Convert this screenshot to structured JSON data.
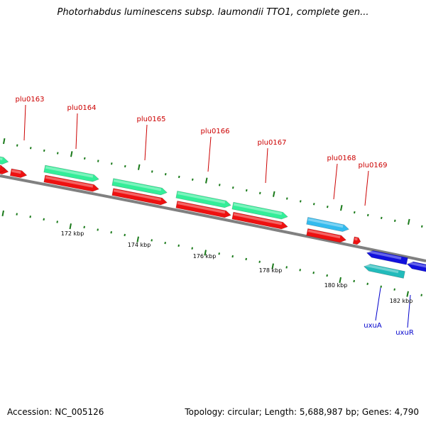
{
  "title": "Photorhabdus luminescens subsp. laumondii TTO1, complete gen...",
  "footer": {
    "accession": "Accession: NC_005126",
    "summary": "Topology: circular; Length: 5,688,987 bp; Genes: 4,790"
  },
  "colors": {
    "backbone": "#808080",
    "tick": "#1a7a1a",
    "cds_forward": "#ee1111",
    "gene_forward": "#33ee99",
    "gene_forward_alt": "#33bbee",
    "cds_reverse": "#1111dd",
    "gene_reverse": "#22bbbb",
    "label_forward": "#cc0000",
    "label_reverse": "#0000cc"
  },
  "scale_labels": [
    "172 kbp",
    "174 kbp",
    "176 kbp",
    "178 kbp",
    "180 kbp",
    "182 kbp"
  ],
  "forward_gene_labels": [
    "plu0163",
    "plu0164",
    "plu0165",
    "plu0166",
    "plu0167",
    "plu0168",
    "plu0169"
  ],
  "reverse_gene_labels": [
    "uxuA",
    "uxuR"
  ]
}
